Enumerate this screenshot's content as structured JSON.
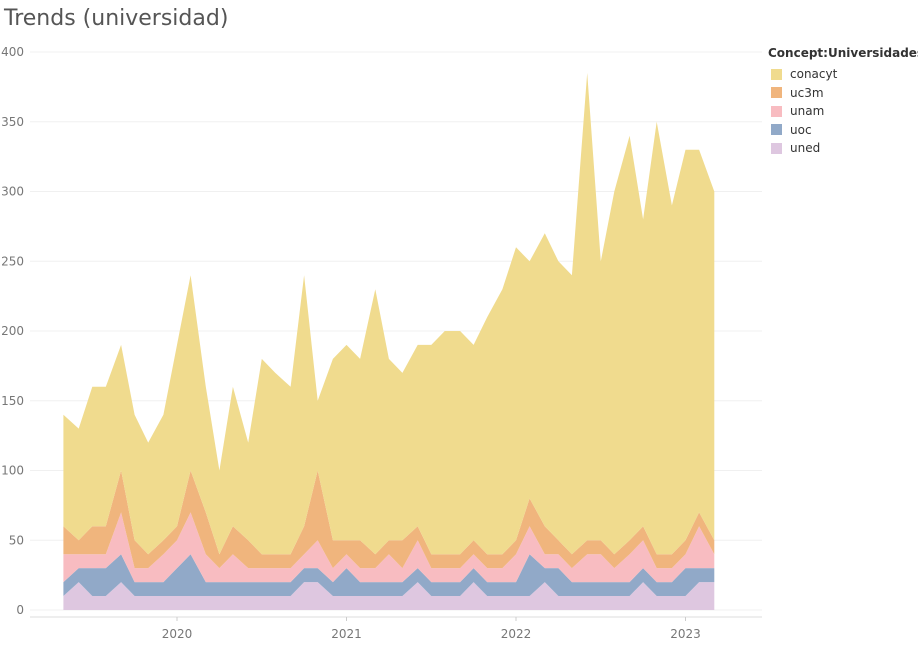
{
  "chart_data": {
    "type": "area",
    "stacked": true,
    "title": "Trends (universidad)",
    "legend_title": "Concept:Universidades",
    "legend_position": "top-right",
    "xlabel": "",
    "ylabel": "",
    "ylim": [
      0,
      400
    ],
    "yticks": [
      0,
      50,
      100,
      150,
      200,
      250,
      300,
      350,
      400
    ],
    "xticks": [
      {
        "label": "2020",
        "x": 2020.0
      },
      {
        "label": "2021",
        "x": 2021.0
      },
      {
        "label": "2022",
        "x": 2022.0
      },
      {
        "label": "2023",
        "x": 2023.0
      }
    ],
    "grid": true,
    "x": [
      2019.33,
      2019.42,
      2019.5,
      2019.58,
      2019.67,
      2019.75,
      2019.83,
      2019.92,
      2020.0,
      2020.08,
      2020.17,
      2020.25,
      2020.33,
      2020.42,
      2020.5,
      2020.58,
      2020.67,
      2020.75,
      2020.83,
      2020.92,
      2021.0,
      2021.08,
      2021.17,
      2021.25,
      2021.33,
      2021.42,
      2021.5,
      2021.58,
      2021.67,
      2021.75,
      2021.83,
      2021.92,
      2022.0,
      2022.08,
      2022.17,
      2022.25,
      2022.33,
      2022.42,
      2022.5,
      2022.58,
      2022.67,
      2022.75,
      2022.83,
      2022.92,
      2023.0,
      2023.08,
      2023.17
    ],
    "series": [
      {
        "name": "uned",
        "color": "#dec7e0",
        "values": [
          10,
          20,
          10,
          10,
          20,
          10,
          10,
          10,
          10,
          10,
          10,
          10,
          10,
          10,
          10,
          10,
          10,
          20,
          20,
          10,
          10,
          10,
          10,
          10,
          10,
          20,
          10,
          10,
          10,
          20,
          10,
          10,
          10,
          10,
          20,
          10,
          10,
          10,
          10,
          10,
          10,
          20,
          10,
          10,
          10,
          20,
          20
        ]
      },
      {
        "name": "uoc",
        "color": "#91a9c8",
        "values": [
          10,
          10,
          20,
          20,
          20,
          10,
          10,
          10,
          20,
          30,
          10,
          10,
          10,
          10,
          10,
          10,
          10,
          10,
          10,
          10,
          20,
          10,
          10,
          10,
          10,
          10,
          10,
          10,
          10,
          10,
          10,
          10,
          10,
          30,
          10,
          20,
          10,
          10,
          10,
          10,
          10,
          10,
          10,
          10,
          20,
          10,
          10
        ]
      },
      {
        "name": "unam",
        "color": "#f8bcc1",
        "values": [
          20,
          10,
          10,
          10,
          30,
          10,
          10,
          20,
          20,
          30,
          20,
          10,
          20,
          10,
          10,
          10,
          10,
          10,
          20,
          10,
          10,
          10,
          10,
          20,
          10,
          20,
          10,
          10,
          10,
          10,
          10,
          10,
          20,
          20,
          10,
          10,
          10,
          20,
          20,
          10,
          20,
          20,
          10,
          10,
          10,
          30,
          10
        ]
      },
      {
        "name": "uc3m",
        "color": "#f0b57d",
        "values": [
          20,
          10,
          20,
          20,
          30,
          20,
          10,
          10,
          10,
          30,
          30,
          10,
          20,
          20,
          10,
          10,
          10,
          20,
          50,
          20,
          10,
          20,
          10,
          10,
          20,
          10,
          10,
          10,
          10,
          10,
          10,
          10,
          10,
          20,
          20,
          10,
          10,
          10,
          10,
          10,
          10,
          10,
          10,
          10,
          10,
          10,
          10
        ]
      },
      {
        "name": "conacyt",
        "color": "#f0db8e",
        "values": [
          80,
          80,
          100,
          100,
          90,
          90,
          80,
          90,
          130,
          140,
          90,
          60,
          100,
          70,
          140,
          130,
          120,
          180,
          50,
          130,
          140,
          130,
          190,
          130,
          120,
          130,
          150,
          160,
          160,
          140,
          170,
          190,
          210,
          170,
          210,
          200,
          200,
          335,
          200,
          260,
          290,
          220,
          310,
          250,
          280,
          260,
          250
        ]
      }
    ]
  }
}
